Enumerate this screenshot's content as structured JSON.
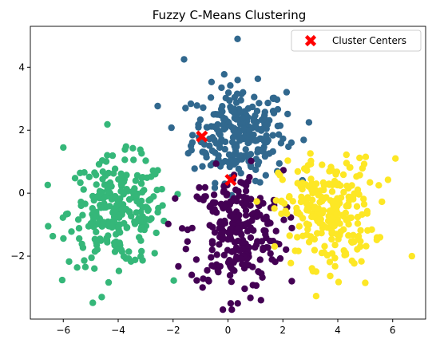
{
  "chart_data": {
    "type": "scatter",
    "title": "Fuzzy C-Means Clustering",
    "xlabel": "",
    "ylabel": "",
    "xlim": [
      -7.2,
      7.2
    ],
    "ylim": [
      -4.0,
      5.3
    ],
    "xticks": [
      -6,
      -4,
      -2,
      0,
      2,
      4,
      6
    ],
    "yticks": [
      -2,
      0,
      2,
      4
    ],
    "xtick_labels": [
      "−6",
      "−4",
      "−2",
      "0",
      "2",
      "4",
      "6"
    ],
    "ytick_labels": [
      "−2",
      "0",
      "2",
      "4"
    ],
    "grid": false,
    "legend": {
      "placement": "top-right",
      "entries": [
        "Cluster Centers"
      ]
    },
    "clusters": [
      {
        "color": "#31688e",
        "center": [
          0.4,
          1.9
        ],
        "spread": [
          0.85,
          0.75
        ],
        "count": 260
      },
      {
        "color": "#35b779",
        "center": [
          -4.0,
          -0.6
        ],
        "spread": [
          0.9,
          0.85
        ],
        "count": 250
      },
      {
        "color": "#440154",
        "center": [
          0.3,
          -1.2
        ],
        "spread": [
          0.85,
          0.95
        ],
        "count": 250
      },
      {
        "color": "#fde725",
        "center": [
          3.6,
          -0.6
        ],
        "spread": [
          0.85,
          0.85
        ],
        "count": 250
      }
    ],
    "extra_points": [
      {
        "cluster": 0,
        "x": 0.35,
        "y": 4.9
      },
      {
        "cluster": 0,
        "x": -1.6,
        "y": 4.25
      },
      {
        "cluster": 0,
        "x": 2.95,
        "y": 2.25
      },
      {
        "cluster": 1,
        "x": -4.6,
        "y": -3.3
      },
      {
        "cluster": 1,
        "x": -6.0,
        "y": 1.45
      },
      {
        "cluster": 1,
        "x": -6.55,
        "y": -1.05
      },
      {
        "cluster": 2,
        "x": 0.1,
        "y": -3.5
      },
      {
        "cluster": 2,
        "x": 1.2,
        "y": -3.4
      },
      {
        "cluster": 3,
        "x": 6.7,
        "y": -2.0
      },
      {
        "cluster": 3,
        "x": 6.1,
        "y": 1.1
      },
      {
        "cluster": 3,
        "x": 5.0,
        "y": -2.85
      }
    ],
    "centers": [
      {
        "x": -0.95,
        "y": 1.8,
        "color": "#ff0000"
      },
      {
        "x": 0.1,
        "y": 0.42,
        "color": "#ff0000"
      }
    ]
  }
}
